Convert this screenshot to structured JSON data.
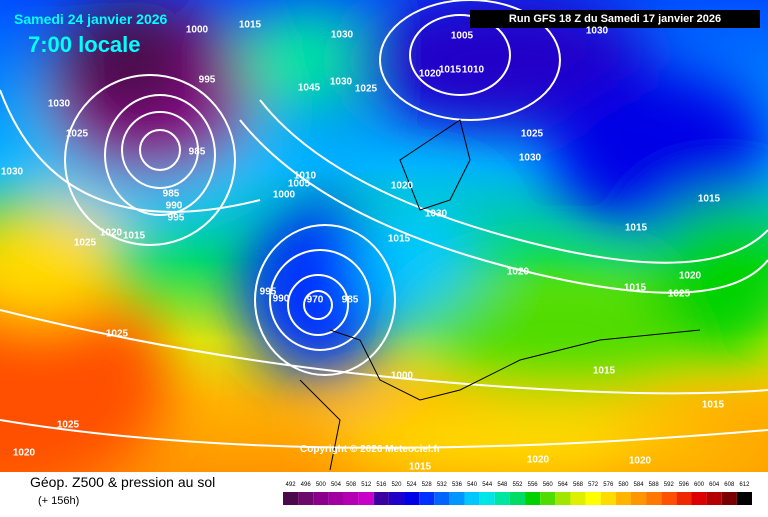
{
  "header": {
    "date": "Samedi 24 janvier 2026",
    "local_time": "7:00 locale",
    "run": "Run GFS 18 Z du Samedi 17 janvier 2026"
  },
  "copyright": "Copyright © 2026 Meteociel.fr",
  "footer": {
    "title": "Géop. Z500 & pression au sol",
    "lead": "(+ 156h)"
  },
  "color_scale": {
    "labels": [
      "492",
      "496",
      "500",
      "504",
      "508",
      "512",
      "516",
      "520",
      "524",
      "528",
      "532",
      "536",
      "540",
      "544",
      "548",
      "552",
      "556",
      "560",
      "564",
      "568",
      "572",
      "576",
      "580",
      "584",
      "588",
      "592",
      "596",
      "600",
      "604",
      "608",
      "612"
    ],
    "colors": [
      "#4b0a4b",
      "#6a0a6a",
      "#8b008b",
      "#a000a0",
      "#b400b4",
      "#c800c8",
      "#3c00a0",
      "#2000c8",
      "#0000e6",
      "#0030ff",
      "#0064ff",
      "#0096ff",
      "#00c8ff",
      "#00e6e6",
      "#00e6a0",
      "#00dc64",
      "#00d200",
      "#50dc00",
      "#a0e600",
      "#dcf000",
      "#ffff00",
      "#ffdc00",
      "#ffb400",
      "#ff9600",
      "#ff7800",
      "#ff5000",
      "#f02800",
      "#dc0000",
      "#b40000",
      "#780000",
      "#000000"
    ]
  },
  "isobar_labels": [
    "1000",
    "1015",
    "1030",
    "1005",
    "1030",
    "1020",
    "1015",
    "1010",
    "995",
    "1045",
    "1030",
    "1025",
    "1030",
    "1025",
    "1025",
    "1030",
    "1030",
    "985",
    "1010",
    "1005",
    "1000",
    "1020",
    "1015",
    "1030",
    "985",
    "990",
    "995",
    "1020",
    "1015",
    "1025",
    "1015",
    "1015",
    "1020",
    "1020",
    "1015",
    "1025",
    "995",
    "990",
    "970",
    "985",
    "1000",
    "1015",
    "1025",
    "1015",
    "1025",
    "1020",
    "1015",
    "1020",
    "1020"
  ]
}
